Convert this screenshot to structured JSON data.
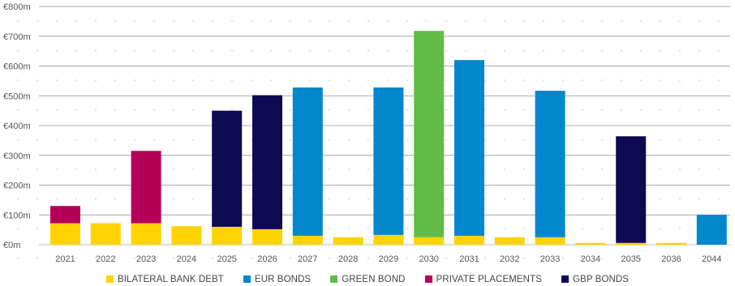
{
  "chart_data": {
    "type": "bar",
    "stacked": true,
    "categories": [
      "2021",
      "2022",
      "2023",
      "2024",
      "2025",
      "2026",
      "2027",
      "2028",
      "2029",
      "2030",
      "2031",
      "2032",
      "2033",
      "2034",
      "2035",
      "2036",
      "2044"
    ],
    "y_tick_labels": [
      "€0m",
      "€100m",
      "€200m",
      "€300m",
      "€400m",
      "€500m",
      "€600m",
      "€700m",
      "€800m"
    ],
    "y_ticks": [
      0,
      100,
      200,
      300,
      400,
      500,
      600,
      700,
      800
    ],
    "ylim": [
      0,
      800
    ],
    "grid": true,
    "legend_position": "bottom",
    "series": [
      {
        "name": "BILATERAL BANK DEBT",
        "color": "#FFD200",
        "values": [
          72,
          72,
          72,
          62,
          60,
          52,
          30,
          25,
          33,
          25,
          30,
          25,
          25,
          6,
          6,
          6,
          0
        ]
      },
      {
        "name": "EUR BONDS",
        "color": "#0087CC",
        "values": [
          0,
          0,
          0,
          0,
          0,
          0,
          498,
          0,
          495,
          0,
          590,
          0,
          492,
          0,
          0,
          0,
          100
        ]
      },
      {
        "name": "GREEN BOND",
        "color": "#62BB46",
        "values": [
          0,
          0,
          0,
          0,
          0,
          0,
          0,
          0,
          0,
          693,
          0,
          0,
          0,
          0,
          0,
          0,
          0
        ]
      },
      {
        "name": "PRIVATE PLACEMENTS",
        "color": "#B5005A",
        "values": [
          58,
          0,
          243,
          0,
          0,
          0,
          0,
          0,
          0,
          0,
          0,
          0,
          0,
          0,
          0,
          0,
          0
        ]
      },
      {
        "name": "GBP BONDS",
        "color": "#0D0A52",
        "values": [
          0,
          0,
          0,
          0,
          390,
          450,
          0,
          0,
          0,
          0,
          0,
          0,
          0,
          0,
          358,
          0,
          0
        ]
      }
    ],
    "special_colors": {
      "2024_top": "#00467F"
    },
    "xlabel": "",
    "ylabel": ""
  }
}
